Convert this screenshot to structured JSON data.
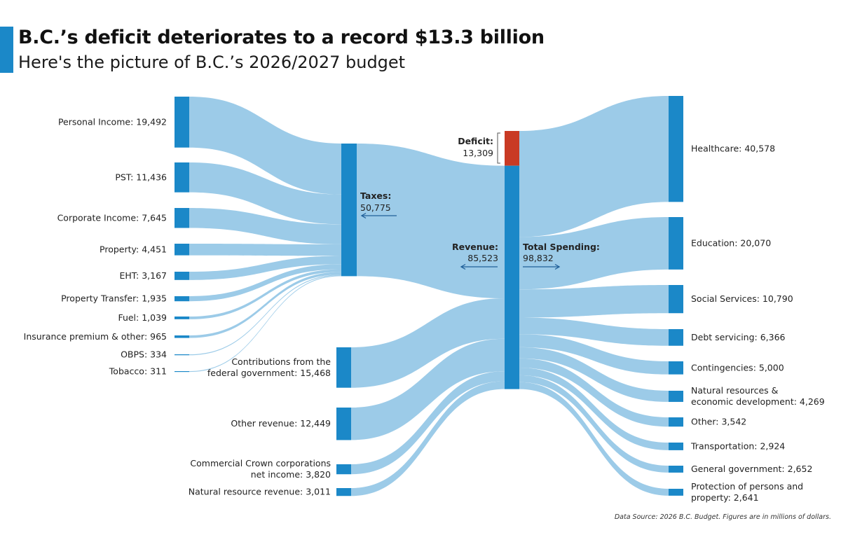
{
  "title": "B.C.’s deficit deteriorates to a record $13.3 billion",
  "subtitle": "Here's the picture of B.C.’s 2026/2027 budget",
  "source": "Data Source: 2026 B.C. Budget. Figures are in millions of dollars.",
  "colors": {
    "node": "#1b88c8",
    "link": "#9ccbe8",
    "deficit": "#c93a24",
    "text": "#222222",
    "arrow": "#1f5f99"
  },
  "chart_data": {
    "type": "sankey",
    "title": "B.C.’s deficit deteriorates to a record $13.3 billion",
    "subtitle": "Here's the picture of B.C.’s 2026/2027 budget",
    "tax_sources": [
      {
        "label": "Personal Income: 19,492",
        "value": 19492
      },
      {
        "label": "PST: 11,436",
        "value": 11436
      },
      {
        "label": "Corporate Income: 7,645",
        "value": 7645
      },
      {
        "label": "Property: 4,451",
        "value": 4451
      },
      {
        "label": "EHT: 3,167",
        "value": 3167
      },
      {
        "label": "Property Transfer: 1,935",
        "value": 1935
      },
      {
        "label": "Fuel: 1,039",
        "value": 1039
      },
      {
        "label": "Insurance premium & other: 965",
        "value": 965
      },
      {
        "label": "OBPS: 334",
        "value": 334
      },
      {
        "label": "Tobacco: 311",
        "value": 311
      }
    ],
    "taxes": {
      "label": "Taxes:",
      "value_label": "50,775",
      "value": 50775
    },
    "other_sources": [
      {
        "label": [
          "Contributions from the",
          "federal government: 15,468"
        ],
        "value": 15468
      },
      {
        "label": [
          "Other revenue: 12,449"
        ],
        "value": 12449
      },
      {
        "label": [
          "Commercial Crown corporations",
          "net income: 3,820"
        ],
        "value": 3820
      },
      {
        "label": [
          "Natural resource revenue: 3,011"
        ],
        "value": 3011
      }
    ],
    "deficit": {
      "label": "Deficit:",
      "value_label": "13,309",
      "value": 13309
    },
    "revenue": {
      "label": "Revenue:",
      "value_label": "85,523",
      "value": 85523
    },
    "total_spending": {
      "label": "Total Spending:",
      "value_label": "98,832",
      "value": 98832
    },
    "spending": [
      {
        "label": [
          "Healthcare: 40,578"
        ],
        "value": 40578
      },
      {
        "label": [
          "Education: 20,070"
        ],
        "value": 20070
      },
      {
        "label": [
          "Social Services: 10,790"
        ],
        "value": 10790
      },
      {
        "label": [
          "Debt servicing: 6,366"
        ],
        "value": 6366
      },
      {
        "label": [
          "Contingencies: 5,000"
        ],
        "value": 5000
      },
      {
        "label": [
          "Natural resources &",
          "economic development: 4,269"
        ],
        "value": 4269
      },
      {
        "label": [
          "Other: 3,542"
        ],
        "value": 3542
      },
      {
        "label": [
          "Transportation: 2,924"
        ],
        "value": 2924
      },
      {
        "label": [
          "General government: 2,652"
        ],
        "value": 2652
      },
      {
        "label": [
          "Protection of persons and",
          "property: 2,641"
        ],
        "value": 2641
      }
    ]
  }
}
